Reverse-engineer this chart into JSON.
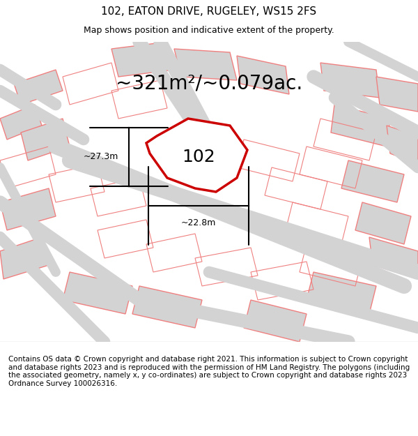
{
  "title": "102, EATON DRIVE, RUGELEY, WS15 2FS",
  "subtitle": "Map shows position and indicative extent of the property.",
  "area_text": "~321m²/~0.079ac.",
  "property_label": "102",
  "width_label": "~22.8m",
  "height_label": "~27.3m",
  "footer": "Contains OS data © Crown copyright and database right 2021. This information is subject to Crown copyright and database rights 2023 and is reproduced with the permission of HM Land Registry. The polygons (including the associated geometry, namely x, y co-ordinates) are subject to Crown copyright and database rights 2023 Ordnance Survey 100026316.",
  "bg_color": "#f5f5f5",
  "map_bg": "#ffffff",
  "road_color": "#d3d3d3",
  "building_color": "#d3d3d3",
  "property_fill": "#ffffff",
  "property_outline": "#cc0000",
  "other_outline": "#f08080",
  "title_fontsize": 11,
  "subtitle_fontsize": 9,
  "area_fontsize": 20,
  "label_fontsize": 18,
  "footer_fontsize": 7.5
}
